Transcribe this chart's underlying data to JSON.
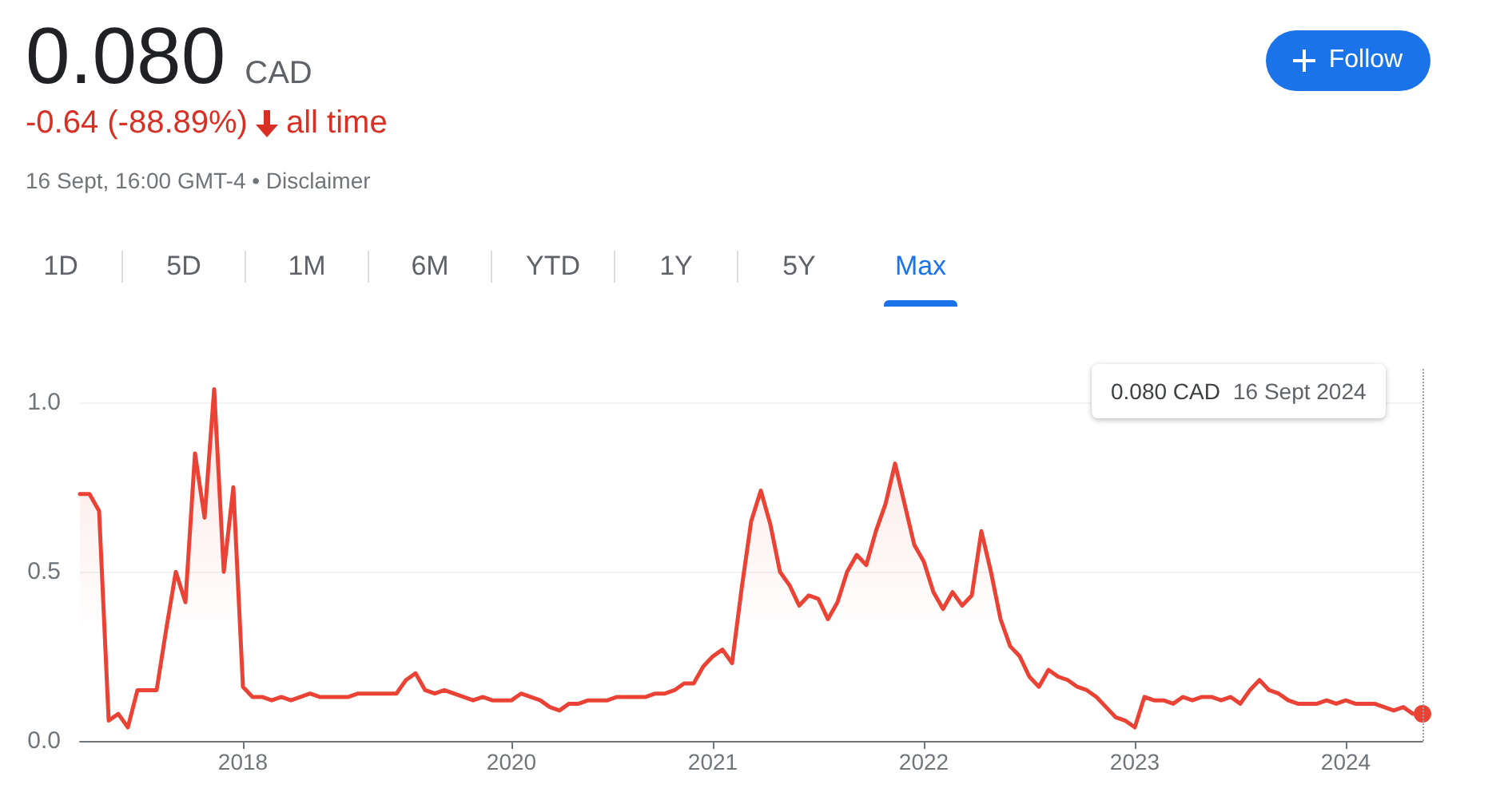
{
  "chart_data": {
    "type": "area",
    "title": "0.080",
    "annotations": [
      "CAD",
      "-0.64 (-88.89%)",
      "all time",
      "16 Sept, 16:00 GMT-4 • Disclaimer",
      "1D",
      "5D",
      "1M",
      "6M",
      "YTD",
      "1Y",
      "5Y",
      "Max",
      "Follow",
      "0.080 CAD",
      "16 Sept 2024"
    ],
    "categories": [
      null,
      null,
      null,
      null,
      null,
      null,
      null,
      null,
      null,
      null,
      null,
      null,
      null,
      null,
      null,
      null,
      null,
      "2018",
      null,
      null,
      null,
      null,
      null,
      null,
      null,
      null,
      null,
      null,
      null,
      null,
      null,
      null,
      null,
      null,
      null,
      null,
      null,
      null,
      null,
      null,
      null,
      null,
      null,
      null,
      null,
      "2020",
      null,
      null,
      null,
      null,
      null,
      null,
      null,
      null,
      null,
      null,
      null,
      null,
      null,
      null,
      null,
      null,
      null,
      null,
      null,
      null,
      "2021",
      null,
      null,
      null,
      null,
      null,
      null,
      null,
      null,
      null,
      null,
      null,
      null,
      null,
      null,
      null,
      null,
      null,
      null,
      null,
      null,
      null,
      "2022",
      null,
      null,
      null,
      null,
      null,
      null,
      null,
      null,
      null,
      null,
      null,
      null,
      null,
      null,
      null,
      null,
      null,
      null,
      null,
      null,
      null,
      "2023",
      null,
      null,
      null,
      null,
      null,
      null,
      null,
      null,
      null,
      null,
      null,
      null,
      null,
      null,
      null,
      null,
      null,
      null,
      null,
      null,
      null,
      "2024",
      null,
      null,
      null,
      null,
      null,
      null,
      null,
      null
    ],
    "series": [
      {
        "color": "#ea4335",
        "values": [
          0.73,
          0.73,
          0.68,
          0.06,
          0.08,
          0.04,
          0.15,
          0.15,
          0.15,
          0.33,
          0.5,
          0.41,
          0.85,
          0.66,
          1.04,
          0.5,
          0.75,
          0.16,
          0.13,
          0.13,
          0.12,
          0.13,
          0.12,
          0.13,
          0.14,
          0.13,
          0.13,
          0.13,
          0.13,
          0.14,
          0.14,
          0.14,
          0.14,
          0.14,
          0.18,
          0.2,
          0.15,
          0.14,
          0.15,
          0.14,
          0.13,
          0.12,
          0.13,
          0.12,
          0.12,
          0.12,
          0.14,
          0.13,
          0.12,
          0.1,
          0.09,
          0.11,
          0.11,
          0.12,
          0.12,
          0.12,
          0.13,
          0.13,
          0.13,
          0.13,
          0.14,
          0.14,
          0.15,
          0.17,
          0.17,
          0.22,
          0.25,
          0.27,
          0.23,
          0.45,
          0.65,
          0.74,
          0.64,
          0.5,
          0.46,
          0.4,
          0.43,
          0.42,
          0.36,
          0.41,
          0.5,
          0.55,
          0.52,
          0.62,
          0.7,
          0.82,
          0.7,
          0.58,
          0.53,
          0.44,
          0.39,
          0.44,
          0.4,
          0.43,
          0.62,
          0.5,
          0.36,
          0.28,
          0.25,
          0.19,
          0.16,
          0.21,
          0.19,
          0.18,
          0.16,
          0.15,
          0.13,
          0.1,
          0.07,
          0.06,
          0.04,
          0.13,
          0.12,
          0.12,
          0.11,
          0.13,
          0.12,
          0.13,
          0.13,
          0.12,
          0.13,
          0.11,
          0.15,
          0.18,
          0.15,
          0.14,
          0.12,
          0.11,
          0.11,
          0.11,
          0.12,
          0.11,
          0.12,
          0.11,
          0.11,
          0.11,
          0.1,
          0.09,
          0.1,
          0.08,
          0.08
        ]
      }
    ],
    "ylim": [
      0,
      1.1
    ],
    "yticks": [
      {
        "value": 0,
        "label": "0.0"
      },
      {
        "value": 0.5,
        "label": "0.5"
      },
      {
        "value": 1,
        "label": "1.0"
      }
    ],
    "grid": "y",
    "marker": "none",
    "line_style": "solid"
  }
}
